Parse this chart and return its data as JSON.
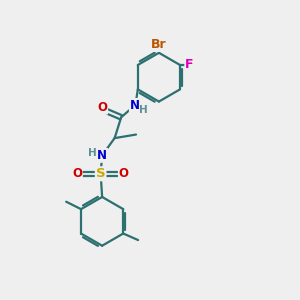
{
  "bg_color": "#efefef",
  "bond_color": "#2d7070",
  "bond_width": 1.6,
  "atom_colors": {
    "Br": "#bb5500",
    "F": "#dd00bb",
    "N": "#0000cc",
    "O": "#cc0000",
    "S": "#ccaa00",
    "C": "#2d7070",
    "H": "#5d9090"
  },
  "font_size": 8.5,
  "fig_size": [
    3.0,
    3.0
  ],
  "dpi": 100
}
